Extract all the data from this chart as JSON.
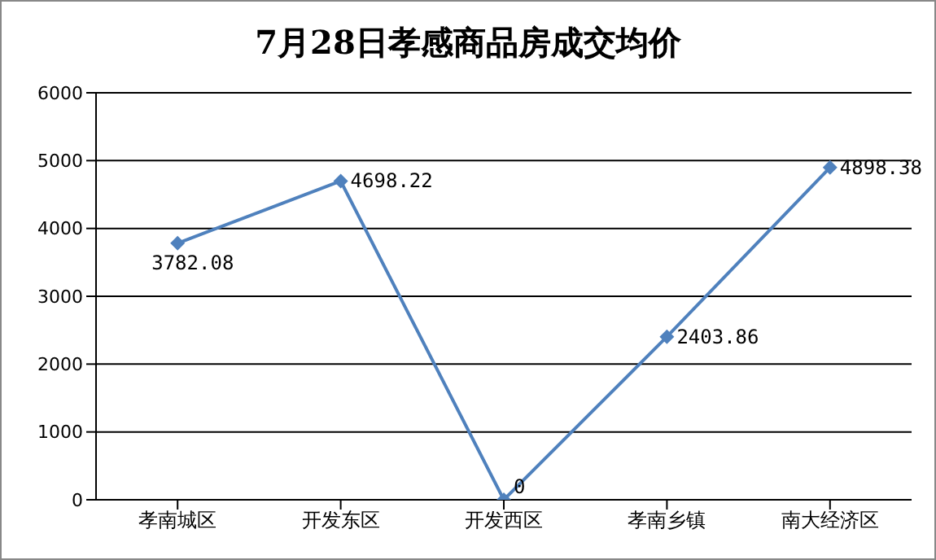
{
  "chart_data": {
    "type": "line",
    "title": "7月28日孝感商品房成交均价",
    "categories": [
      "孝南城区",
      "开发东区",
      "开发西区",
      "孝南乡镇",
      "南大经济区"
    ],
    "series": [
      {
        "color": "#4f81bd",
        "values": [
          3782.08,
          4698.22,
          0,
          2403.86,
          4898.38
        ]
      }
    ],
    "ylim": [
      0,
      6000
    ],
    "yticks": [
      0,
      1000,
      2000,
      3000,
      4000,
      5000,
      6000
    ],
    "grid": "y",
    "legend": false,
    "marker": "diamond",
    "data_labels": true
  }
}
